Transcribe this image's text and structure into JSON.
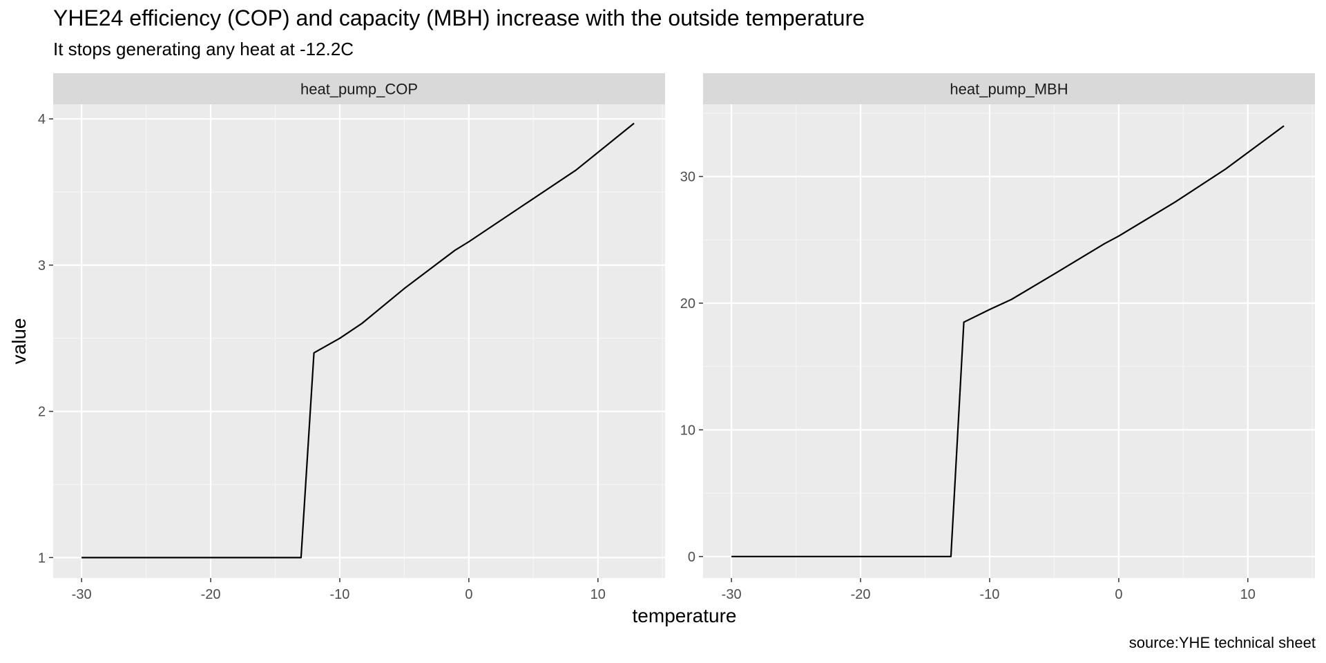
{
  "chart_data": {
    "type": "line",
    "title": "YHE24 efficiency (COP) and capacity (MBH) increase with the outside temperature",
    "subtitle": "It stops generating any heat at -12.2C",
    "xlabel": "temperature",
    "ylabel": "value",
    "caption": "source:YHE technical sheet",
    "grid": true,
    "xlim": [
      -32.2,
      15.2
    ],
    "x_ticks": [
      -30,
      -20,
      -10,
      0,
      10
    ],
    "x_tick_labels": [
      "-30",
      "-20",
      "-10",
      "0",
      "10"
    ],
    "panels": [
      {
        "name": "heat_pump_COP",
        "ylim": [
          0.86,
          4.1
        ],
        "y_ticks": [
          1,
          2,
          3,
          4
        ],
        "y_tick_labels": [
          "1",
          "2",
          "3",
          "4"
        ],
        "series": [
          {
            "x": [
              -30,
              -13,
              -12,
              -10,
              -8.3,
              -5,
              -1.1,
              0,
              4.4,
              8.3,
              12.8
            ],
            "y": [
              1,
              1,
              2.4,
              2.5,
              2.6,
              2.84,
              3.1,
              3.16,
              3.42,
              3.65,
              3.97
            ]
          }
        ]
      },
      {
        "name": "heat_pump_MBH",
        "ylim": [
          -1.7,
          35.7
        ],
        "y_ticks": [
          0,
          10,
          20,
          30
        ],
        "y_tick_labels": [
          "0",
          "10",
          "20",
          "30"
        ],
        "series": [
          {
            "x": [
              -30,
              -13,
              -12,
              -10,
              -8.3,
              -5,
              -1.1,
              0,
              4.4,
              8.3,
              12.8
            ],
            "y": [
              0,
              0,
              18.5,
              19.5,
              20.3,
              22.3,
              24.7,
              25.3,
              28,
              30.6,
              34
            ]
          }
        ]
      }
    ]
  }
}
